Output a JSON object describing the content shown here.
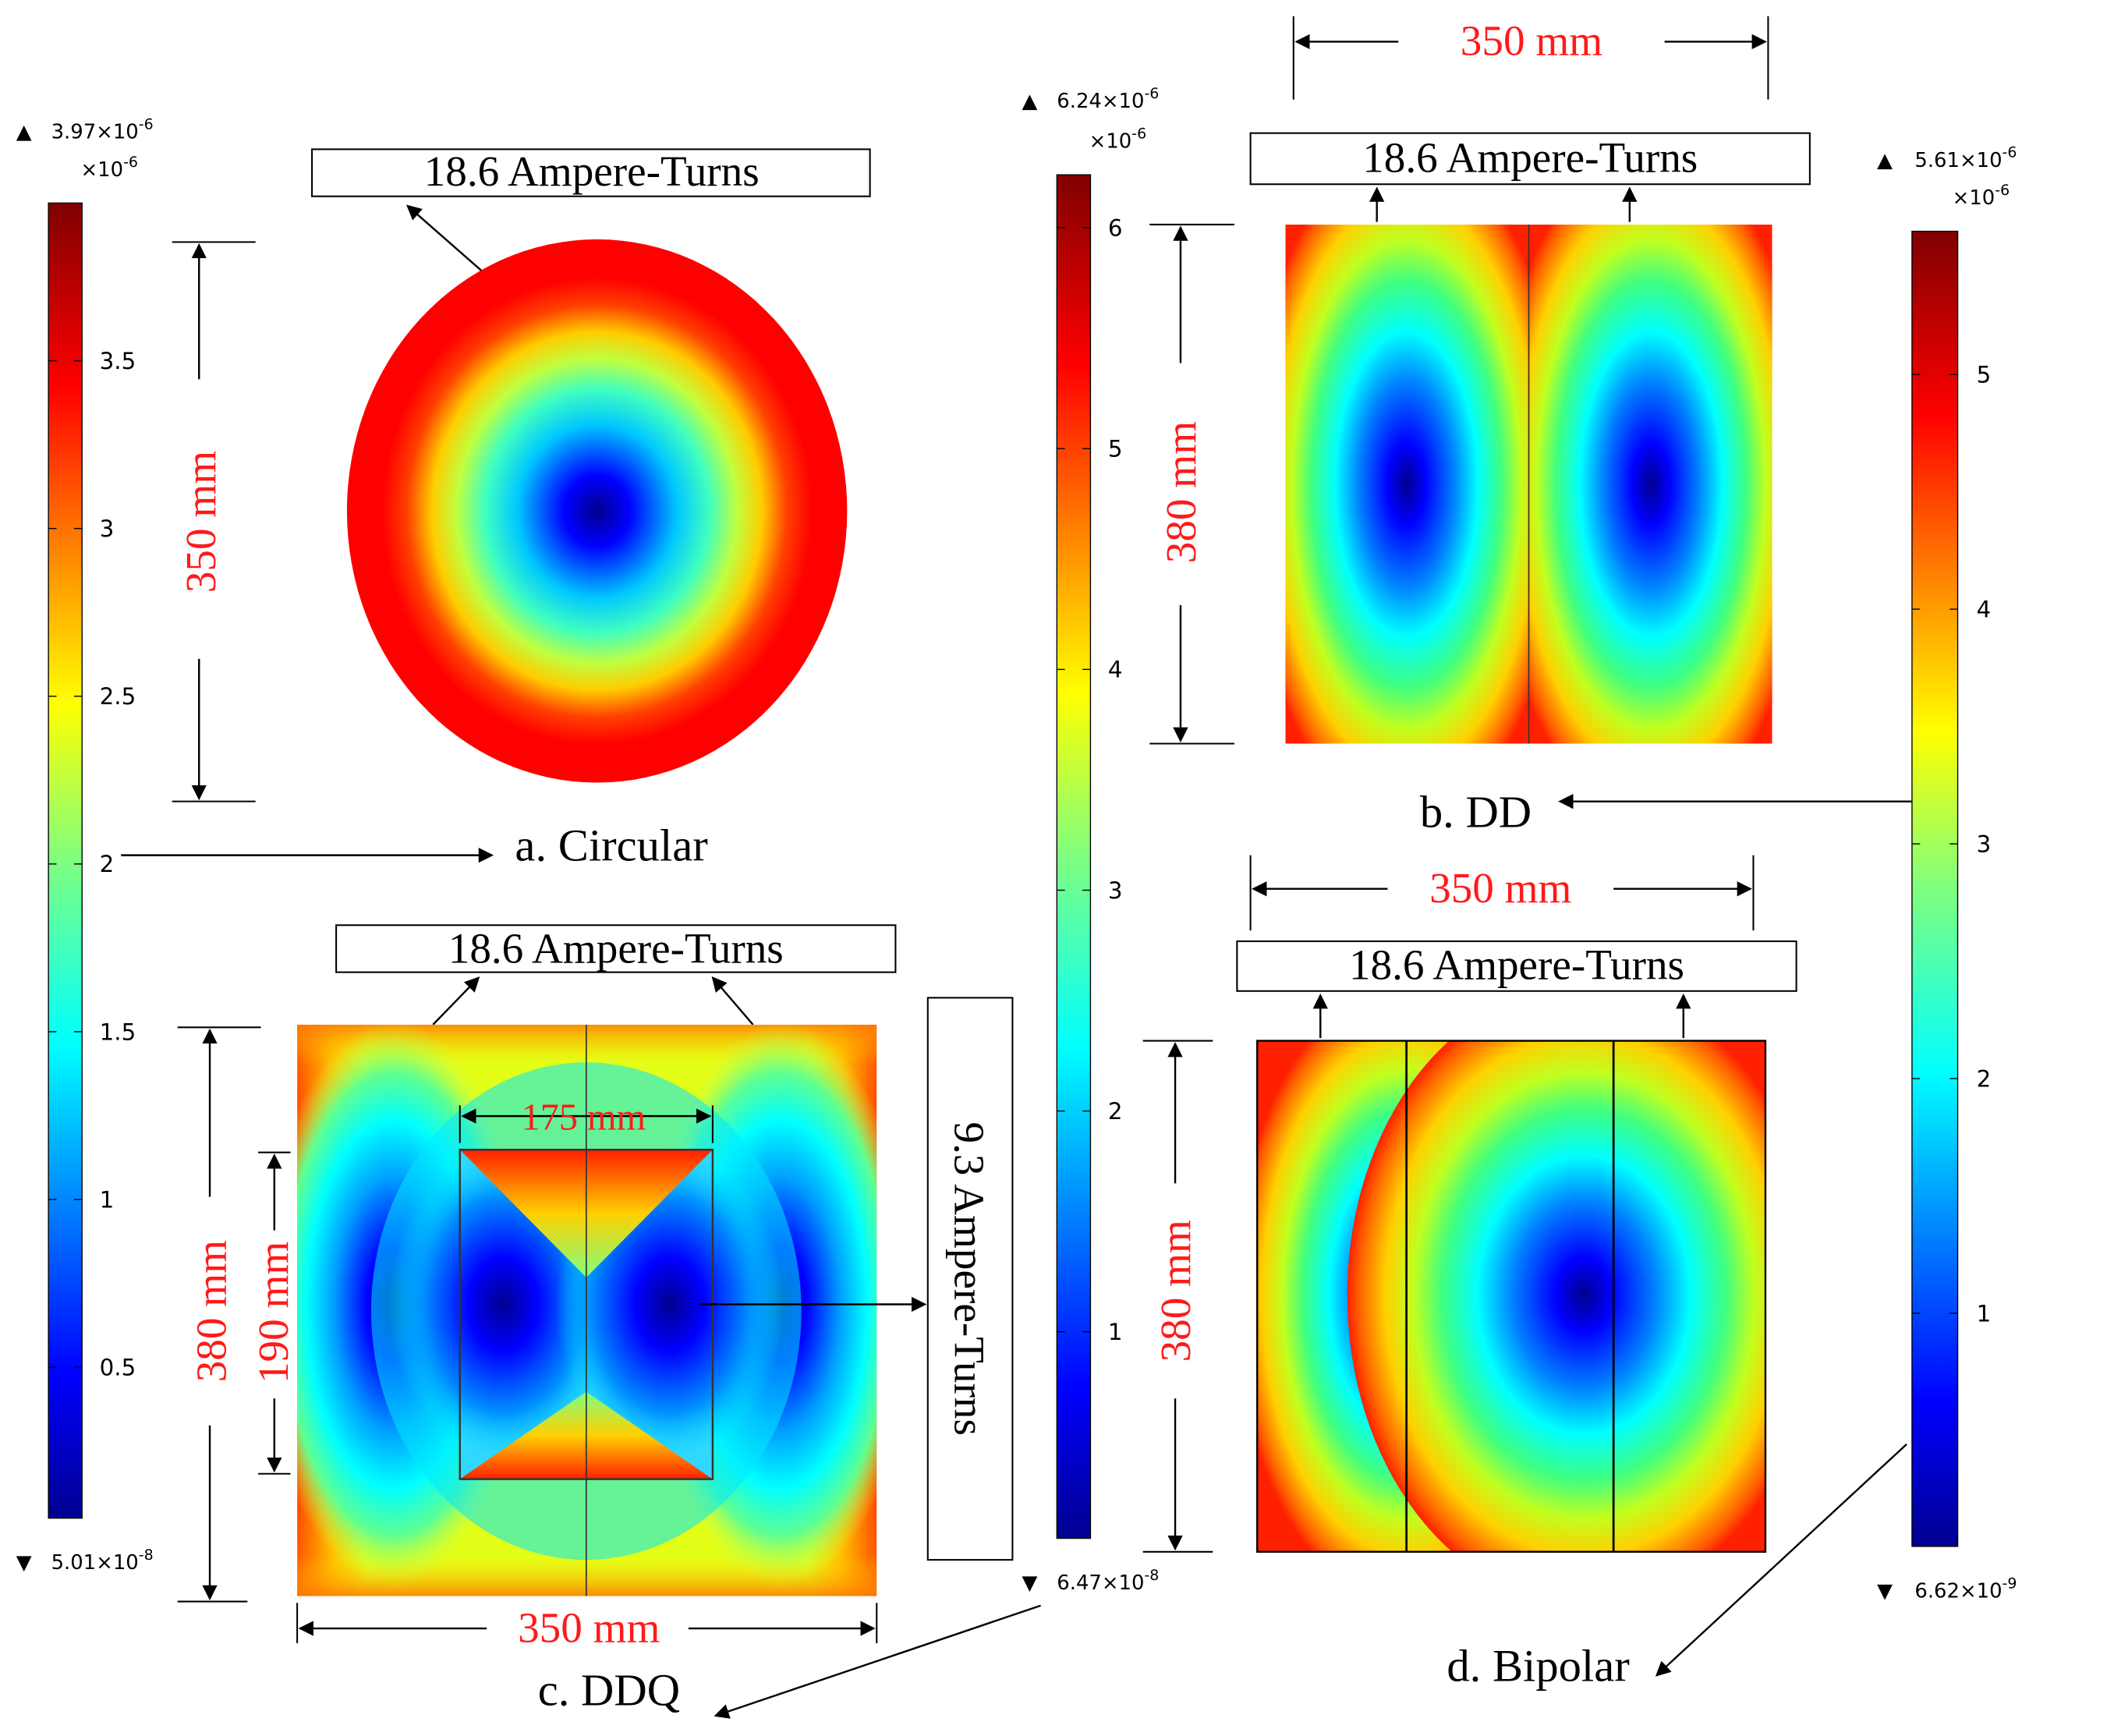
{
  "panels": {
    "circular": {
      "caption": "a. Circular",
      "excitation": "18.6 Ampere-Turns",
      "dim_vertical": "350 mm"
    },
    "dd": {
      "caption": "b. DD",
      "excitation": "18.6 Ampere-Turns",
      "dim_width": "350 mm",
      "dim_height": "380 mm"
    },
    "ddq": {
      "caption": "c. DDQ",
      "excitation": "18.6 Ampere-Turns",
      "excitation_quad": "9.3 Ampere-Turns",
      "dim_width": "350 mm",
      "dim_height": "380 mm",
      "dim_inner_width": "175 mm",
      "dim_inner_height": "190 mm"
    },
    "bipolar": {
      "caption": "d. Bipolar",
      "excitation": "18.6 Ampere-Turns",
      "dim_width": "350 mm",
      "dim_height": "380 mm"
    }
  },
  "colorbars": [
    {
      "id": "cb1",
      "max_label": "3.97×10",
      "max_exp": "-6",
      "min_label": "5.01×10",
      "min_exp": "-8",
      "multiplier": "×10",
      "multiplier_exp": "-6",
      "range": [
        0.0501,
        3.97
      ],
      "ticks": [
        "3.5",
        "3",
        "2.5",
        "2",
        "1.5",
        "1",
        "0.5"
      ],
      "tick_values": [
        3.5,
        3,
        2.5,
        2,
        1.5,
        1,
        0.5
      ]
    },
    {
      "id": "cb2",
      "max_label": "6.24×10",
      "max_exp": "-6",
      "min_label": "6.47×10",
      "min_exp": "-8",
      "multiplier": "×10",
      "multiplier_exp": "-6",
      "range": [
        0.0647,
        6.24
      ],
      "ticks": [
        "6",
        "5",
        "4",
        "3",
        "2",
        "1"
      ],
      "tick_values": [
        6,
        5,
        4,
        3,
        2,
        1
      ]
    },
    {
      "id": "cb3",
      "max_label": "5.61×10",
      "max_exp": "-6",
      "min_label": "6.62×10",
      "min_exp": "-9",
      "multiplier": "×10",
      "multiplier_exp": "-6",
      "range": [
        0.00662,
        5.61
      ],
      "ticks": [
        "5",
        "4",
        "3",
        "2",
        "1"
      ],
      "tick_values": [
        5,
        4,
        3,
        2,
        1
      ]
    }
  ],
  "colors": {
    "dimension_text": "#ff1a1a",
    "outline": "#000000"
  }
}
